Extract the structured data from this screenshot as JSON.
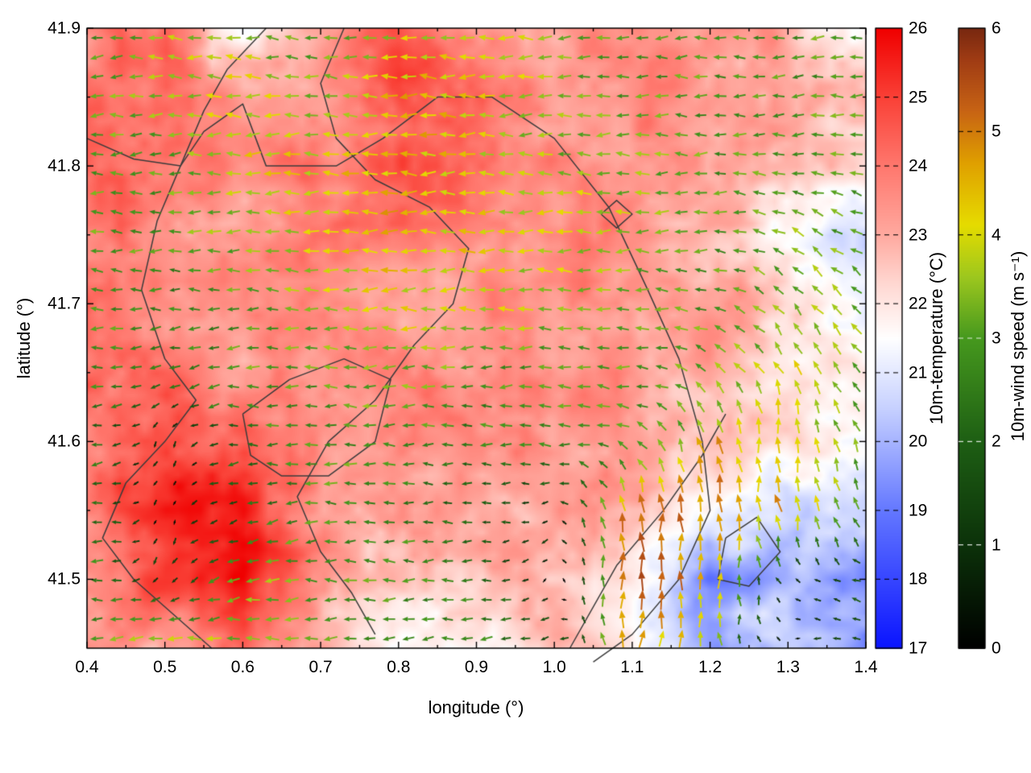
{
  "figure": {
    "background": "#ffffff"
  },
  "chart_data": {
    "type": "heatmap",
    "subtype": "temperature-field-with-wind-vector-overlay-and-region-boundaries",
    "title": "",
    "xlabel": "longitude (°)",
    "ylabel": "latitude (°)",
    "xlim": [
      0.4,
      1.4
    ],
    "ylim": [
      41.45,
      41.9
    ],
    "x_ticks": [
      "0.4",
      "0.5",
      "0.6",
      "0.7",
      "0.8",
      "0.9",
      "1.0",
      "1.1",
      "1.2",
      "1.3",
      "1.4"
    ],
    "x_tick_values": [
      0.4,
      0.5,
      0.6,
      0.7,
      0.8,
      0.9,
      1.0,
      1.1,
      1.2,
      1.3,
      1.4
    ],
    "y_ticks": [
      "41.5",
      "41.6",
      "41.7",
      "41.8",
      "41.9"
    ],
    "y_tick_values": [
      41.5,
      41.6,
      41.7,
      41.8,
      41.9
    ],
    "boundary_color": "#3c3c3c",
    "frame_color": "#000000",
    "temperature": {
      "label": "10m-temperature (°C)",
      "range": [
        17,
        26
      ],
      "ticks": [
        "17",
        "18",
        "19",
        "20",
        "21",
        "22",
        "23",
        "24",
        "25",
        "26"
      ],
      "tick_values": [
        17,
        18,
        19,
        20,
        21,
        22,
        23,
        24,
        25,
        26
      ],
      "colormap": [
        [
          17,
          "#0a14ff"
        ],
        [
          19,
          "#6478ff"
        ],
        [
          20.5,
          "#c8d2ff"
        ],
        [
          21.5,
          "#ffffff"
        ],
        [
          22.3,
          "#ffd8d2"
        ],
        [
          23,
          "#ffaaa0"
        ],
        [
          24,
          "#ff786e"
        ],
        [
          25,
          "#fa4137"
        ],
        [
          26,
          "#f00000"
        ]
      ],
      "grid_lon": [
        0.4,
        0.5,
        0.6,
        0.7,
        0.8,
        0.9,
        1.0,
        1.1,
        1.2,
        1.3,
        1.4
      ],
      "grid_lat": [
        41.9,
        41.85,
        41.8,
        41.75,
        41.7,
        41.65,
        41.6,
        41.55,
        41.5,
        41.45
      ],
      "values": [
        [
          23.5,
          24.0,
          21.5,
          23.0,
          24.5,
          23.0,
          23.5,
          23.5,
          23.5,
          23.0,
          21.5
        ],
        [
          24.0,
          24.5,
          23.0,
          23.5,
          24.5,
          24.5,
          23.5,
          23.5,
          23.5,
          23.0,
          22.5
        ],
        [
          24.5,
          24.0,
          23.5,
          24.0,
          24.5,
          24.0,
          23.5,
          23.5,
          23.5,
          23.0,
          22.5
        ],
        [
          24.0,
          23.5,
          23.5,
          23.5,
          24.0,
          23.5,
          23.5,
          23.5,
          23.0,
          21.5,
          20.5
        ],
        [
          24.0,
          23.5,
          23.5,
          23.5,
          23.5,
          23.5,
          23.5,
          23.5,
          23.0,
          22.5,
          21.5
        ],
        [
          24.0,
          24.0,
          23.5,
          23.5,
          23.5,
          23.5,
          23.5,
          23.5,
          23.0,
          22.0,
          21.5
        ],
        [
          24.0,
          25.0,
          24.5,
          23.5,
          23.5,
          23.5,
          23.5,
          23.5,
          22.5,
          22.0,
          21.0
        ],
        [
          24.0,
          25.5,
          25.5,
          23.5,
          23.0,
          23.0,
          23.5,
          23.0,
          21.5,
          20.5,
          20.5
        ],
        [
          23.5,
          25.0,
          26.0,
          23.5,
          22.5,
          22.5,
          23.0,
          22.0,
          19.5,
          20.0,
          19.5
        ],
        [
          23.0,
          23.5,
          24.0,
          23.0,
          21.5,
          22.0,
          22.5,
          21.5,
          20.0,
          21.0,
          19.5
        ]
      ]
    },
    "wind": {
      "label": "10m-wind speed (m s⁻¹)",
      "range": [
        0,
        6
      ],
      "ticks": [
        "0",
        "1",
        "2",
        "3",
        "4",
        "5",
        "6"
      ],
      "tick_values": [
        0,
        1,
        2,
        3,
        4,
        5,
        6
      ],
      "colormap": [
        [
          0,
          "#000000"
        ],
        [
          1,
          "#0c320a"
        ],
        [
          2,
          "#1e5f14"
        ],
        [
          3,
          "#46991e"
        ],
        [
          3.6,
          "#9ec81e"
        ],
        [
          4.1,
          "#e6dc00"
        ],
        [
          4.7,
          "#e0a000"
        ],
        [
          5.2,
          "#c86414"
        ],
        [
          5.7,
          "#a03c14"
        ],
        [
          6,
          "#782810"
        ]
      ],
      "grid_lon": [
        0.4,
        0.5,
        0.6,
        0.7,
        0.8,
        0.9,
        1.0,
        1.1,
        1.2,
        1.3,
        1.4
      ],
      "grid_lat": [
        41.9,
        41.85,
        41.8,
        41.75,
        41.7,
        41.65,
        41.6,
        41.55,
        41.5,
        41.45
      ],
      "speed": [
        [
          3,
          3.5,
          3.5,
          3,
          3.5,
          4,
          3.5,
          3,
          3,
          3,
          3
        ],
        [
          3,
          3.5,
          4,
          3.5,
          4.5,
          4,
          3.5,
          3,
          3,
          3,
          3
        ],
        [
          3,
          3,
          4,
          4,
          4.5,
          4,
          3.5,
          3.5,
          3,
          3,
          3
        ],
        [
          3,
          3,
          3.5,
          4,
          4.5,
          4,
          4,
          3.5,
          3,
          3.5,
          3
        ],
        [
          3,
          2.5,
          3,
          3.5,
          4,
          4,
          3.5,
          3,
          3,
          3.5,
          3.5
        ],
        [
          3,
          2.5,
          3,
          3,
          3.5,
          3,
          3,
          3,
          3.5,
          4,
          3
        ],
        [
          2.5,
          1,
          2.5,
          3,
          3,
          2.5,
          3,
          3,
          4.5,
          4.5,
          3
        ],
        [
          2.5,
          0.5,
          2,
          3,
          2.5,
          2,
          1,
          5.5,
          5,
          4.5,
          3
        ],
        [
          3,
          1.5,
          3.5,
          3,
          3,
          2.5,
          0.5,
          5.5,
          4.5,
          1,
          1.5
        ],
        [
          3,
          4,
          3.5,
          3,
          2.5,
          3,
          2,
          5,
          3.5,
          0.5,
          2
        ]
      ],
      "direction_deg": [
        [
          190,
          180,
          170,
          180,
          180,
          180,
          180,
          185,
          180,
          180,
          190
        ],
        [
          180,
          180,
          180,
          175,
          180,
          180,
          180,
          180,
          180,
          185,
          180
        ],
        [
          180,
          185,
          180,
          180,
          180,
          180,
          180,
          180,
          180,
          180,
          175
        ],
        [
          175,
          180,
          180,
          180,
          180,
          180,
          180,
          180,
          180,
          150,
          150
        ],
        [
          180,
          180,
          180,
          180,
          180,
          180,
          180,
          180,
          170,
          130,
          140
        ],
        [
          180,
          200,
          180,
          180,
          180,
          180,
          180,
          175,
          150,
          115,
          125
        ],
        [
          190,
          260,
          180,
          180,
          180,
          180,
          180,
          150,
          100,
          95,
          115
        ],
        [
          180,
          270,
          200,
          180,
          180,
          180,
          200,
          95,
          90,
          100,
          120
        ],
        [
          170,
          250,
          190,
          180,
          180,
          180,
          250,
          90,
          85,
          140,
          160
        ],
        [
          180,
          180,
          180,
          180,
          185,
          180,
          200,
          85,
          95,
          200,
          170
        ]
      ]
    },
    "boundaries": [
      [
        [
          0.63,
          41.9
        ],
        [
          0.58,
          41.87
        ],
        [
          0.55,
          41.84
        ],
        [
          0.52,
          41.8
        ],
        [
          0.49,
          41.76
        ],
        [
          0.47,
          41.71
        ],
        [
          0.5,
          41.66
        ],
        [
          0.54,
          41.63
        ],
        [
          0.5,
          41.6
        ],
        [
          0.45,
          41.57
        ],
        [
          0.42,
          41.53
        ],
        [
          0.46,
          41.5
        ],
        [
          0.52,
          41.47
        ],
        [
          0.56,
          41.45
        ]
      ],
      [
        [
          0.4,
          41.82
        ],
        [
          0.46,
          41.805
        ],
        [
          0.52,
          41.8
        ],
        [
          0.55,
          41.825
        ],
        [
          0.6,
          41.845
        ],
        [
          0.63,
          41.8
        ],
        [
          0.72,
          41.8
        ],
        [
          0.78,
          41.82
        ],
        [
          0.85,
          41.85
        ],
        [
          0.92,
          41.85
        ],
        [
          1.0,
          41.82
        ],
        [
          1.07,
          41.77
        ],
        [
          1.12,
          41.71
        ],
        [
          1.16,
          41.66
        ],
        [
          1.19,
          41.6
        ],
        [
          1.2,
          41.55
        ],
        [
          1.16,
          41.5
        ],
        [
          1.1,
          41.46
        ],
        [
          1.05,
          41.44
        ]
      ],
      [
        [
          0.73,
          41.9
        ],
        [
          0.7,
          41.86
        ],
        [
          0.72,
          41.82
        ],
        [
          0.77,
          41.79
        ],
        [
          0.84,
          41.77
        ],
        [
          0.89,
          41.74
        ],
        [
          0.87,
          41.7
        ],
        [
          0.82,
          41.67
        ],
        [
          0.77,
          41.63
        ],
        [
          0.71,
          41.6
        ],
        [
          0.67,
          41.56
        ],
        [
          0.7,
          41.52
        ],
        [
          0.74,
          41.49
        ],
        [
          0.77,
          41.46
        ]
      ],
      [
        [
          0.6,
          41.62
        ],
        [
          0.66,
          41.645
        ],
        [
          0.73,
          41.66
        ],
        [
          0.79,
          41.645
        ],
        [
          0.77,
          41.6
        ],
        [
          0.71,
          41.575
        ],
        [
          0.65,
          41.575
        ],
        [
          0.61,
          41.59
        ],
        [
          0.6,
          41.62
        ]
      ],
      [
        [
          1.06,
          41.765
        ],
        [
          1.08,
          41.775
        ],
        [
          1.1,
          41.765
        ],
        [
          1.08,
          41.755
        ],
        [
          1.06,
          41.765
        ]
      ],
      [
        [
          1.22,
          41.53
        ],
        [
          1.26,
          41.545
        ],
        [
          1.29,
          41.52
        ],
        [
          1.25,
          41.495
        ],
        [
          1.21,
          41.5
        ],
        [
          1.22,
          41.53
        ]
      ],
      [
        [
          1.02,
          41.45
        ],
        [
          1.08,
          41.51
        ],
        [
          1.14,
          41.55
        ],
        [
          1.19,
          41.59
        ],
        [
          1.22,
          41.62
        ]
      ]
    ]
  }
}
